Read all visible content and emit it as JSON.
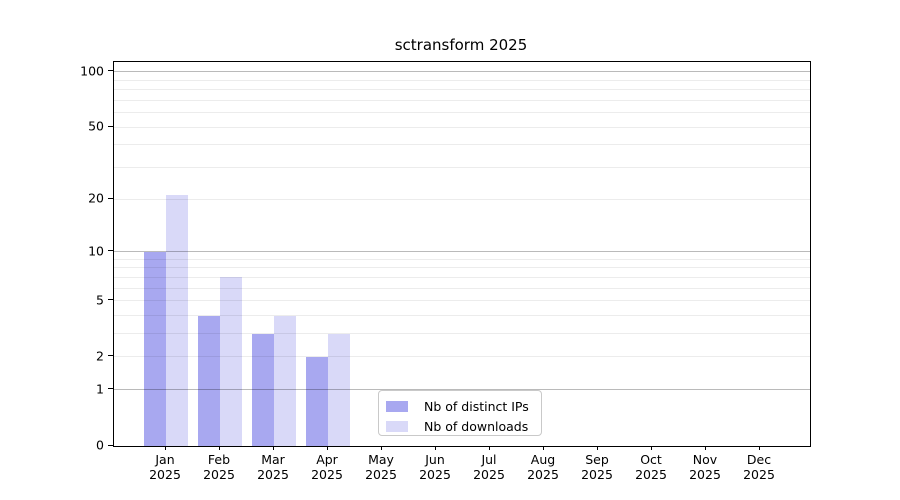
{
  "chart_data": {
    "type": "bar",
    "title": "sctransform 2025",
    "months": [
      "Jan",
      "Feb",
      "Mar",
      "Apr",
      "May",
      "Jun",
      "Jul",
      "Aug",
      "Sep",
      "Oct",
      "Nov",
      "Dec"
    ],
    "year": "2025",
    "series": [
      {
        "name": "Nb of distinct IPs",
        "color": "#a8a8f0",
        "values": [
          10,
          4,
          3,
          2,
          0,
          0,
          0,
          0,
          0,
          0,
          0,
          0
        ]
      },
      {
        "name": "Nb of downloads",
        "color": "#d9d9f8",
        "values": [
          21,
          7,
          4,
          3,
          0,
          0,
          0,
          0,
          0,
          0,
          0,
          0
        ]
      }
    ],
    "y_scale": "log10(1 + x)",
    "ylim": [
      0,
      113
    ],
    "y_ticks": [
      0,
      1,
      2,
      5,
      10,
      20,
      50,
      100
    ],
    "y_gridlines_major": [
      1,
      10,
      100
    ],
    "y_gridlines_minor": [
      2,
      3,
      4,
      5,
      6,
      7,
      8,
      9,
      20,
      30,
      40,
      50,
      60,
      70,
      80,
      90
    ],
    "grid": true,
    "legend_position": "inside-bottom-center-left"
  },
  "colors": {
    "bar_distinct_ips": "#a8a8f0",
    "bar_downloads": "#d9d9f8",
    "spine": "#000000",
    "grid_major": "rgba(0,0,0,0.27)",
    "grid_minor": "rgba(0,0,0,0.075)",
    "legend_border": "#c9c9c9",
    "background": "#ffffff"
  }
}
